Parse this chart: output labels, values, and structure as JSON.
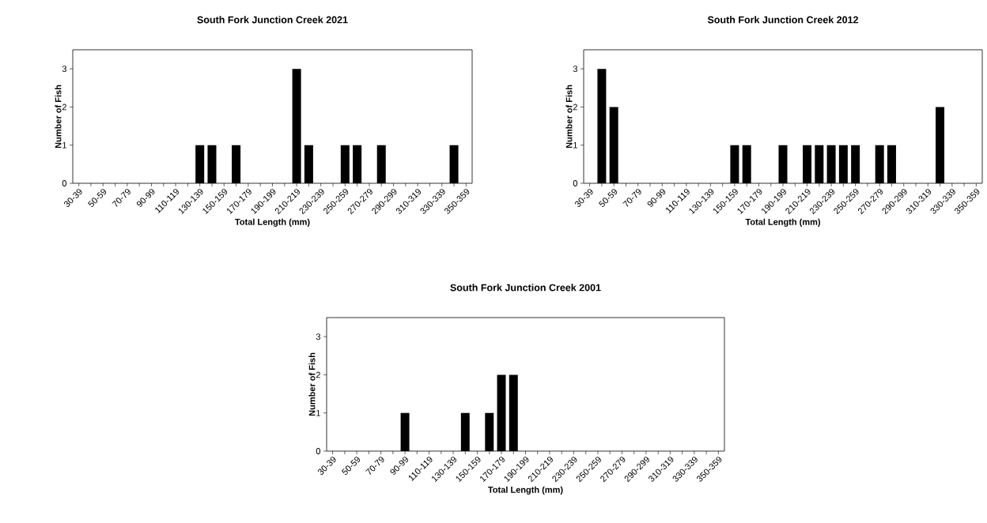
{
  "chart_data": [
    {
      "type": "bar",
      "title": "South Fork Junction Creek 2021",
      "xlabel": "Total Length (mm)",
      "ylabel": "Number of Fish",
      "color": "#000000",
      "ylim": [
        0,
        3.5
      ],
      "yticks": [
        0,
        1,
        2,
        3
      ],
      "categories": [
        "30-39",
        null,
        "50-59",
        null,
        "70-79",
        null,
        "90-99",
        null,
        "110-119",
        null,
        "130-139",
        null,
        "150-159",
        null,
        "170-179",
        null,
        "190-199",
        null,
        "210-219",
        null,
        "230-239",
        null,
        "250-259",
        null,
        "270-279",
        null,
        "290-299",
        null,
        "310-319",
        null,
        "330-339",
        null,
        "350-359"
      ],
      "values": [
        0,
        0,
        0,
        0,
        0,
        0,
        0,
        0,
        0,
        0,
        1,
        1,
        0,
        1,
        0,
        0,
        0,
        0,
        3,
        1,
        0,
        0,
        1,
        1,
        0,
        1,
        0,
        0,
        0,
        0,
        0,
        1,
        0
      ]
    },
    {
      "type": "bar",
      "title": "South Fork Junction Creek 2012",
      "xlabel": "Total Length (mm)",
      "ylabel": "Number of Fish",
      "color": "#000000",
      "ylim": [
        0,
        3.5
      ],
      "yticks": [
        0,
        1,
        2,
        3
      ],
      "categories": [
        "30-39",
        null,
        "50-59",
        null,
        "70-79",
        null,
        "90-99",
        null,
        "110-119",
        null,
        "130-139",
        null,
        "150-159",
        null,
        "170-179",
        null,
        "190-199",
        null,
        "210-219",
        null,
        "230-239",
        null,
        "250-259",
        null,
        "270-279",
        null,
        "290-299",
        null,
        "310-319",
        null,
        "330-339",
        null,
        "350-359"
      ],
      "values": [
        0,
        3,
        2,
        0,
        0,
        0,
        0,
        0,
        0,
        0,
        0,
        0,
        1,
        1,
        0,
        0,
        1,
        0,
        1,
        1,
        1,
        1,
        1,
        0,
        1,
        1,
        0,
        0,
        0,
        2,
        0,
        0,
        0
      ]
    },
    {
      "type": "bar",
      "title": "South Fork Junction Creek 2001",
      "xlabel": "Total Length (mm)",
      "ylabel": "Number of Fish",
      "color": "#000000",
      "ylim": [
        0,
        3.5
      ],
      "yticks": [
        0,
        1,
        2,
        3
      ],
      "categories": [
        "30-39",
        null,
        "50-59",
        null,
        "70-79",
        null,
        "90-99",
        null,
        "110-119",
        null,
        "130-139",
        null,
        "150-159",
        null,
        "170-179",
        null,
        "190-199",
        null,
        "210-219",
        null,
        "230-239",
        null,
        "250-259",
        null,
        "270-279",
        null,
        "290-299",
        null,
        "310-319",
        null,
        "330-339",
        null,
        "350-359"
      ],
      "values": [
        0,
        0,
        0,
        0,
        0,
        0,
        1,
        0,
        0,
        0,
        0,
        1,
        0,
        1,
        2,
        2,
        0,
        0,
        0,
        0,
        0,
        0,
        0,
        0,
        0,
        0,
        0,
        0,
        0,
        0,
        0,
        0,
        0
      ]
    }
  ]
}
